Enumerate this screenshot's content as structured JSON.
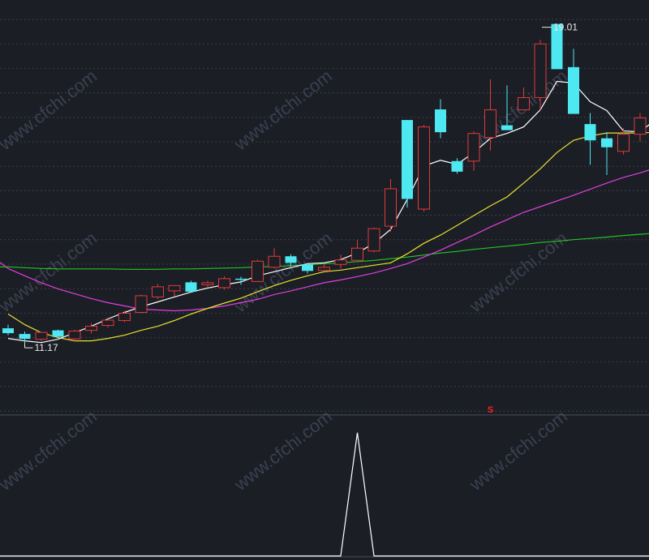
{
  "colors": {
    "background": "#1b1e25",
    "grid": "#3a3f4a",
    "up": "#e23a3a",
    "down": "#4ee8f3",
    "ma5": "#ffffff",
    "ma10": "#e6e22e",
    "ma20": "#e040e0",
    "ma60": "#25c425",
    "indicator": "#ffffff",
    "signal": "#ff2020",
    "annotation": "#e8e8e8",
    "watermark": "#3b4050"
  },
  "watermark": "www.cfchi.com",
  "chart_data": {
    "type": "candlestick",
    "price_range": [
      9.42,
      19.6
    ],
    "annotations": {
      "high": {
        "label": "19.01",
        "value": 19.01,
        "index": 32
      },
      "low": {
        "label": "11.17",
        "value": 11.17,
        "index": 1
      }
    },
    "signal_marker": {
      "label": "S",
      "index": 29
    },
    "candles": [
      {
        "o": 11.53,
        "h": 11.62,
        "l": 11.36,
        "c": 11.41
      },
      {
        "o": 11.39,
        "h": 11.45,
        "l": 11.17,
        "c": 11.27
      },
      {
        "o": 11.26,
        "h": 11.43,
        "l": 11.2,
        "c": 11.43
      },
      {
        "o": 11.48,
        "h": 11.5,
        "l": 11.32,
        "c": 11.32
      },
      {
        "o": 11.27,
        "h": 11.5,
        "l": 11.2,
        "c": 11.46
      },
      {
        "o": 11.48,
        "h": 11.65,
        "l": 11.4,
        "c": 11.58
      },
      {
        "o": 11.6,
        "h": 11.76,
        "l": 11.55,
        "c": 11.73
      },
      {
        "o": 11.72,
        "h": 11.96,
        "l": 11.68,
        "c": 11.9
      },
      {
        "o": 11.92,
        "h": 12.36,
        "l": 11.9,
        "c": 12.33
      },
      {
        "o": 12.3,
        "h": 12.62,
        "l": 12.25,
        "c": 12.55
      },
      {
        "o": 12.45,
        "h": 12.58,
        "l": 12.32,
        "c": 12.58
      },
      {
        "o": 12.66,
        "h": 12.7,
        "l": 12.42,
        "c": 12.43
      },
      {
        "o": 12.6,
        "h": 12.7,
        "l": 12.52,
        "c": 12.65
      },
      {
        "o": 12.53,
        "h": 12.81,
        "l": 12.48,
        "c": 12.75
      },
      {
        "o": 12.75,
        "h": 12.8,
        "l": 12.6,
        "c": 12.72
      },
      {
        "o": 12.68,
        "h": 13.22,
        "l": 12.67,
        "c": 13.18
      },
      {
        "o": 13.03,
        "h": 13.5,
        "l": 13.0,
        "c": 13.3
      },
      {
        "o": 13.3,
        "h": 13.35,
        "l": 13.05,
        "c": 13.14
      },
      {
        "o": 13.1,
        "h": 13.13,
        "l": 12.88,
        "c": 12.94
      },
      {
        "o": 12.95,
        "h": 13.1,
        "l": 12.95,
        "c": 13.03
      },
      {
        "o": 13.1,
        "h": 13.34,
        "l": 13.0,
        "c": 13.21
      },
      {
        "o": 13.2,
        "h": 13.7,
        "l": 13.2,
        "c": 13.5
      },
      {
        "o": 13.43,
        "h": 14.0,
        "l": 13.4,
        "c": 13.98
      },
      {
        "o": 14.04,
        "h": 15.2,
        "l": 13.9,
        "c": 14.96
      },
      {
        "o": 16.65,
        "h": 16.65,
        "l": 14.5,
        "c": 14.71
      },
      {
        "o": 14.46,
        "h": 16.53,
        "l": 14.4,
        "c": 16.48
      },
      {
        "o": 16.91,
        "h": 17.16,
        "l": 16.2,
        "c": 16.35
      },
      {
        "o": 15.64,
        "h": 15.71,
        "l": 15.33,
        "c": 15.38
      },
      {
        "o": 15.64,
        "h": 16.37,
        "l": 15.4,
        "c": 16.32
      },
      {
        "o": 16.22,
        "h": 17.65,
        "l": 15.9,
        "c": 16.9
      },
      {
        "o": 16.52,
        "h": 17.5,
        "l": 16.42,
        "c": 16.4
      },
      {
        "o": 16.9,
        "h": 17.45,
        "l": 16.9,
        "c": 17.2
      },
      {
        "o": 17.2,
        "h": 18.62,
        "l": 16.9,
        "c": 18.52
      },
      {
        "o": 19.01,
        "h": 19.01,
        "l": 17.9,
        "c": 17.9
      },
      {
        "o": 17.95,
        "h": 18.4,
        "l": 16.8,
        "c": 16.8
      },
      {
        "o": 16.55,
        "h": 16.82,
        "l": 15.55,
        "c": 16.15
      },
      {
        "o": 16.2,
        "h": 16.35,
        "l": 15.3,
        "c": 15.98
      },
      {
        "o": 15.88,
        "h": 16.45,
        "l": 15.8,
        "c": 16.3
      },
      {
        "o": 16.3,
        "h": 16.82,
        "l": 16.12,
        "c": 16.7
      },
      {
        "o": 16.1,
        "h": 16.9,
        "l": 16.05,
        "c": 16.73
      }
    ],
    "ma_series": [
      {
        "name": "MA5",
        "values": [
          11.28,
          11.22,
          11.18,
          11.26,
          11.42,
          11.58,
          11.76,
          11.92,
          12.06,
          12.18,
          12.3,
          12.42,
          12.52,
          12.6,
          12.67,
          12.82,
          12.92,
          13.02,
          13.12,
          13.14,
          13.22,
          13.38,
          13.62,
          13.96,
          14.7,
          15.52,
          15.66,
          15.56,
          15.85,
          16.2,
          16.32,
          16.48,
          16.9,
          17.6,
          17.56,
          17.1,
          16.88,
          16.38,
          16.36,
          16.68
        ]
      },
      {
        "name": "MA10",
        "values": [
          11.88,
          11.62,
          11.42,
          11.3,
          11.22,
          11.22,
          11.28,
          11.36,
          11.48,
          11.58,
          11.72,
          11.88,
          12.02,
          12.15,
          12.27,
          12.43,
          12.58,
          12.71,
          12.82,
          12.92,
          12.96,
          13.02,
          13.08,
          13.14,
          13.36,
          13.62,
          13.82,
          14.06,
          14.3,
          14.54,
          14.76,
          15.1,
          15.45,
          15.85,
          16.15,
          16.26,
          16.33,
          16.33,
          16.33,
          16.35
        ]
      },
      {
        "name": "MA20",
        "values": [
          13.0,
          12.82,
          12.65,
          12.5,
          12.38,
          12.26,
          12.16,
          12.08,
          12.0,
          11.98,
          11.96,
          11.98,
          12.02,
          12.08,
          12.16,
          12.24,
          12.36,
          12.45,
          12.55,
          12.65,
          12.72,
          12.8,
          12.89,
          13.0,
          13.12,
          13.28,
          13.45,
          13.64,
          13.82,
          14.02,
          14.2,
          14.38,
          14.52,
          14.66,
          14.8,
          14.95,
          15.1,
          15.24,
          15.35,
          15.48
        ]
      },
      {
        "name": "MA60",
        "values": [
          13.04,
          13.02,
          13.0,
          12.99,
          12.99,
          12.99,
          12.99,
          12.98,
          12.98,
          12.98,
          12.99,
          12.99,
          13.0,
          13.01,
          13.02,
          13.04,
          13.05,
          13.07,
          13.09,
          13.12,
          13.14,
          13.17,
          13.2,
          13.24,
          13.28,
          13.33,
          13.38,
          13.42,
          13.47,
          13.51,
          13.55,
          13.59,
          13.64,
          13.67,
          13.71,
          13.74,
          13.77,
          13.81,
          13.84,
          13.87
        ]
      }
    ],
    "indicator": {
      "range": [
        0,
        1
      ],
      "values": [
        0,
        0,
        0,
        0,
        0,
        0,
        0,
        0,
        0,
        0,
        0,
        0,
        0,
        0,
        0,
        0,
        0,
        0,
        0,
        0,
        0,
        1,
        0,
        0,
        0,
        0,
        0,
        0,
        0,
        0,
        0,
        0,
        0,
        0,
        0,
        0,
        0,
        0,
        0,
        0
      ]
    }
  }
}
